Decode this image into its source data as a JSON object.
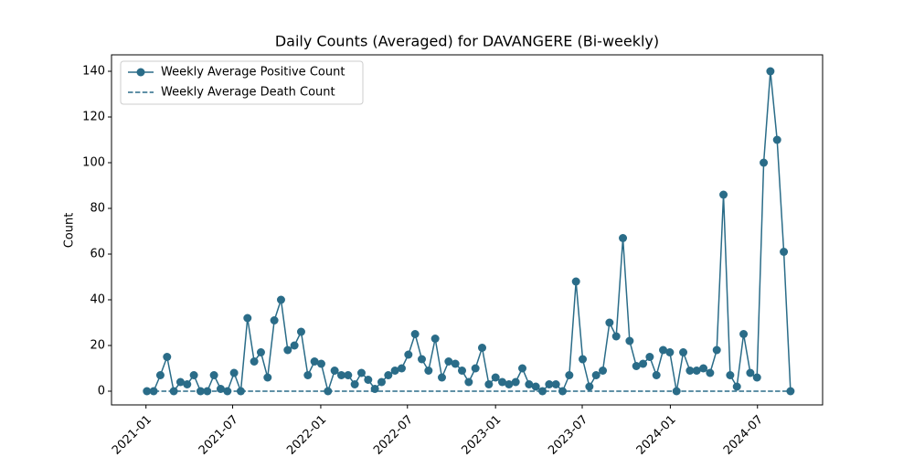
{
  "chart_data": {
    "type": "line",
    "title": "Daily Counts (Averaged) for DAVANGERE (Bi-weekly)",
    "ylabel": "Count",
    "x": [
      "2021-01-03",
      "2021-01-17",
      "2021-01-31",
      "2021-02-14",
      "2021-02-28",
      "2021-03-14",
      "2021-03-28",
      "2021-04-11",
      "2021-04-25",
      "2021-05-09",
      "2021-05-23",
      "2021-06-06",
      "2021-06-20",
      "2021-07-04",
      "2021-07-18",
      "2021-08-01",
      "2021-08-15",
      "2021-08-29",
      "2021-09-12",
      "2021-09-26",
      "2021-10-10",
      "2021-10-24",
      "2021-11-07",
      "2021-11-21",
      "2021-12-05",
      "2021-12-19",
      "2022-01-02",
      "2022-01-16",
      "2022-01-30",
      "2022-02-13",
      "2022-02-27",
      "2022-03-13",
      "2022-03-27",
      "2022-04-10",
      "2022-04-24",
      "2022-05-08",
      "2022-05-22",
      "2022-06-05",
      "2022-06-19",
      "2022-07-03",
      "2022-07-17",
      "2022-07-31",
      "2022-08-14",
      "2022-08-28",
      "2022-09-11",
      "2022-09-25",
      "2022-10-09",
      "2022-10-23",
      "2022-11-06",
      "2022-11-20",
      "2022-12-04",
      "2022-12-18",
      "2023-01-01",
      "2023-01-15",
      "2023-01-29",
      "2023-02-12",
      "2023-02-26",
      "2023-03-12",
      "2023-03-26",
      "2023-04-09",
      "2023-04-23",
      "2023-05-07",
      "2023-05-21",
      "2023-06-04",
      "2023-06-18",
      "2023-07-02",
      "2023-07-16",
      "2023-07-30",
      "2023-08-13",
      "2023-08-27",
      "2023-09-10",
      "2023-09-24",
      "2023-10-08",
      "2023-10-22",
      "2023-11-05",
      "2023-11-19",
      "2023-12-03",
      "2023-12-17",
      "2023-12-31",
      "2024-01-14",
      "2024-01-28",
      "2024-02-11",
      "2024-02-25",
      "2024-03-10",
      "2024-03-24",
      "2024-04-07",
      "2024-04-21",
      "2024-05-05",
      "2024-05-19",
      "2024-06-02",
      "2024-06-16",
      "2024-06-30",
      "2024-07-14",
      "2024-07-28",
      "2024-08-11",
      "2024-08-25",
      "2024-09-08"
    ],
    "series": [
      {
        "name": "Weekly Average Positive Count",
        "color": "#2a6c88",
        "marker": "circle",
        "linestyle": "solid",
        "values": [
          0,
          0,
          7,
          15,
          0,
          4,
          3,
          7,
          0,
          0,
          7,
          1,
          0,
          8,
          0,
          32,
          13,
          17,
          6,
          31,
          40,
          18,
          20,
          26,
          7,
          13,
          12,
          0,
          9,
          7,
          7,
          3,
          8,
          5,
          1,
          4,
          7,
          9,
          10,
          16,
          25,
          14,
          9,
          23,
          6,
          13,
          12,
          9,
          4,
          10,
          19,
          3,
          6,
          4,
          3,
          4,
          10,
          3,
          2,
          0,
          3,
          3,
          0,
          7,
          48,
          14,
          2,
          7,
          9,
          30,
          24,
          67,
          22,
          11,
          12,
          15,
          7,
          18,
          17,
          0,
          17,
          9,
          9,
          10,
          8,
          18,
          86,
          7,
          2,
          25,
          8,
          6,
          100,
          140,
          110,
          61,
          0
        ]
      },
      {
        "name": "Weekly Average Death Count",
        "color": "#2a6c88",
        "marker": "none",
        "linestyle": "dashed",
        "values": [
          0,
          0,
          0,
          0,
          0,
          0,
          0,
          0,
          0,
          0,
          0,
          0,
          0,
          0,
          0,
          0,
          0,
          0,
          0,
          0,
          0,
          0,
          0,
          0,
          0,
          0,
          0,
          0,
          0,
          0,
          0,
          0,
          0,
          0,
          0,
          0,
          0,
          0,
          0,
          0,
          0,
          0,
          0,
          0,
          0,
          0,
          0,
          0,
          0,
          0,
          0,
          0,
          0,
          0,
          0,
          0,
          0,
          0,
          0,
          0,
          0,
          0,
          0,
          0,
          0,
          0,
          0,
          0,
          0,
          0,
          0,
          0,
          0,
          0,
          0,
          0,
          0,
          0,
          0,
          0,
          0,
          0,
          0,
          0,
          0,
          0,
          0,
          0,
          0,
          0,
          0,
          0,
          0,
          0,
          0,
          0,
          0
        ]
      }
    ],
    "xlim": [
      "2020-10-21",
      "2024-11-14"
    ],
    "xticks": [
      {
        "value": "2021-01-01",
        "label": "2021-01"
      },
      {
        "value": "2021-07-01",
        "label": "2021-07"
      },
      {
        "value": "2022-01-01",
        "label": "2022-01"
      },
      {
        "value": "2022-07-01",
        "label": "2022-07"
      },
      {
        "value": "2023-01-01",
        "label": "2023-01"
      },
      {
        "value": "2023-07-01",
        "label": "2023-07"
      },
      {
        "value": "2024-01-01",
        "label": "2024-01"
      },
      {
        "value": "2024-07-01",
        "label": "2024-07"
      }
    ],
    "ylim": [
      -6,
      147.2
    ],
    "yticks": [
      0,
      20,
      40,
      60,
      80,
      100,
      120,
      140
    ],
    "grid": false,
    "legend": "upper left"
  }
}
